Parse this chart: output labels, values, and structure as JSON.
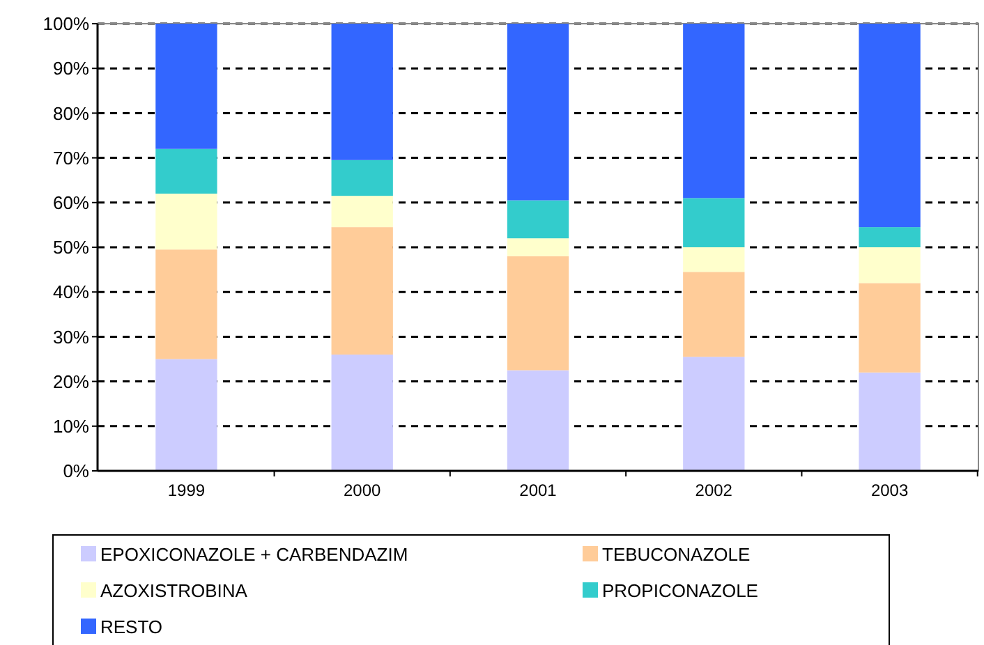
{
  "chart_data": {
    "type": "bar",
    "stacked": true,
    "categories": [
      "1999",
      "2000",
      "2001",
      "2002",
      "2003"
    ],
    "series": [
      {
        "name": "EPOXICONAZOLE + CARBENDAZIM",
        "color": "#ccccff",
        "values": [
          25,
          26,
          22.5,
          25.5,
          22
        ]
      },
      {
        "name": "TEBUCONAZOLE",
        "color": "#ffcc99",
        "values": [
          24.5,
          28.5,
          25.5,
          19,
          20
        ]
      },
      {
        "name": "AZOXISTROBINA",
        "color": "#ffffcc",
        "values": [
          12.5,
          7,
          4,
          5.5,
          8
        ]
      },
      {
        "name": "PROPICONAZOLE",
        "color": "#33cccc",
        "values": [
          10,
          8,
          8.5,
          11,
          4.5
        ]
      },
      {
        "name": "RESTO",
        "color": "#3366ff",
        "values": [
          28,
          30.5,
          39.5,
          39,
          45.5
        ]
      }
    ],
    "ylim": [
      0,
      100
    ],
    "yticks": [
      {
        "value": 0,
        "label": "0%"
      },
      {
        "value": 10,
        "label": "10%"
      },
      {
        "value": 20,
        "label": "20%"
      },
      {
        "value": 30,
        "label": "30%"
      },
      {
        "value": 40,
        "label": "40%"
      },
      {
        "value": 50,
        "label": "50%"
      },
      {
        "value": 60,
        "label": "60%"
      },
      {
        "value": 70,
        "label": "70%"
      },
      {
        "value": 80,
        "label": "80%"
      },
      {
        "value": 90,
        "label": "90%"
      },
      {
        "value": 100,
        "label": "100%"
      }
    ],
    "grid": "y",
    "legend": "bottom"
  }
}
